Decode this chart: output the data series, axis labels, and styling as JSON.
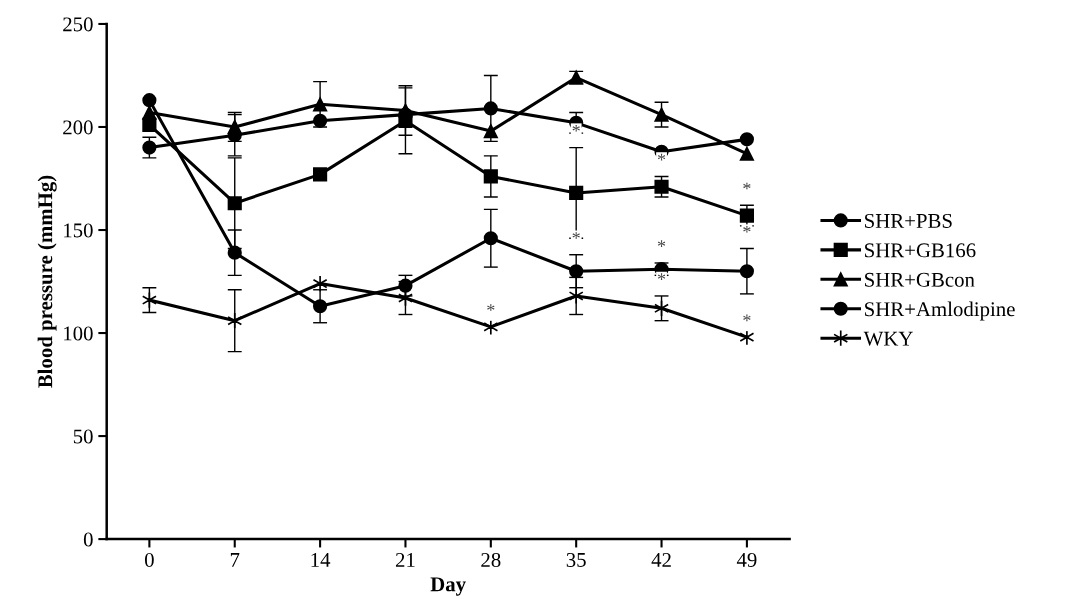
{
  "chart_data": {
    "type": "line",
    "xlabel": "Day",
    "ylabel": "Blood pressure (mmHg)",
    "categories": [
      "0",
      "7",
      "14",
      "21",
      "28",
      "35",
      "42",
      "49"
    ],
    "series": [
      {
        "name": "SHR+PBS",
        "color": "#000000",
        "marker": "circle",
        "values": [
          190,
          196,
          203,
          206,
          209,
          202,
          188,
          194
        ],
        "errors": [
          5,
          10,
          null,
          null,
          16,
          5,
          null,
          null
        ]
      },
      {
        "name": "SHR+GB166",
        "color": "#000000",
        "marker": "square",
        "values": [
          201,
          163,
          177,
          203,
          176,
          168,
          171,
          157
        ],
        "errors": [
          null,
          22,
          null,
          16,
          10,
          22,
          5,
          5
        ]
      },
      {
        "name": "SHR+GBcon",
        "color": "#000000",
        "marker": "triangle",
        "values": [
          207,
          200,
          211,
          208,
          198,
          224,
          206,
          187
        ],
        "errors": [
          null,
          7,
          11,
          12,
          null,
          3,
          6,
          null
        ]
      },
      {
        "name": "SHR+Amlodipine",
        "color": "#000000",
        "marker": "circle",
        "values": [
          213,
          139,
          113,
          123,
          146,
          130,
          131,
          130
        ],
        "errors": [
          null,
          11,
          8,
          5,
          14,
          8,
          3,
          11
        ]
      },
      {
        "name": "WKY",
        "color": "#000000",
        "marker": "cross",
        "values": [
          116,
          106,
          124,
          117,
          103,
          118,
          112,
          98
        ],
        "errors": [
          6,
          15,
          null,
          8,
          null,
          9,
          6,
          null
        ]
      }
    ],
    "ylim": [
      0,
      250
    ],
    "yticks": [
      0,
      50,
      100,
      150,
      200,
      250
    ],
    "legend": "right",
    "grid": false,
    "line_style": "solid",
    "annotations": [
      {
        "text": "*",
        "x": "28",
        "y": 103
      },
      {
        "text": "*",
        "x": "35",
        "y": 190
      },
      {
        "text": "*",
        "x": "35",
        "y": 138
      },
      {
        "text": "*",
        "x": "42",
        "y": 176
      },
      {
        "text": "*",
        "x": "42",
        "y": 134
      },
      {
        "text": "*",
        "x": "42",
        "y": 118
      },
      {
        "text": "*",
        "x": "49",
        "y": 162
      },
      {
        "text": "*",
        "x": "49",
        "y": 141
      },
      {
        "text": "*",
        "x": "49",
        "y": 98
      }
    ]
  }
}
